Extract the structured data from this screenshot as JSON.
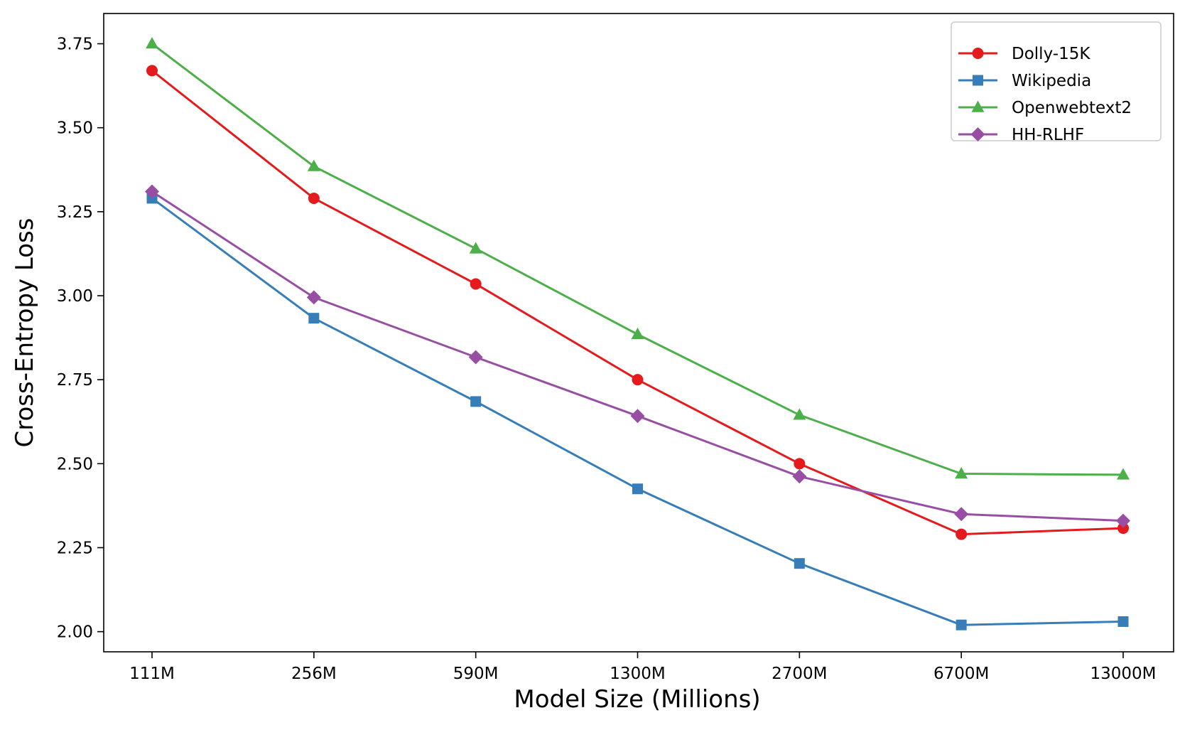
{
  "chart_data": {
    "type": "line",
    "title": "",
    "xlabel": "Model Size (Millions)",
    "ylabel": "Cross-Entropy Loss",
    "categories": [
      "111M",
      "256M",
      "590M",
      "1300M",
      "2700M",
      "6700M",
      "13000M"
    ],
    "ylim": [
      1.94,
      3.84
    ],
    "yticks": [
      2.0,
      2.25,
      2.5,
      2.75,
      3.0,
      3.25,
      3.5,
      3.75
    ],
    "ytick_labels": [
      "2.00",
      "2.25",
      "2.50",
      "2.75",
      "3.00",
      "3.25",
      "3.50",
      "3.75"
    ],
    "grid": false,
    "legend_position": "top-right",
    "series": [
      {
        "name": "Dolly-15K",
        "color": "#e41a1c",
        "marker": "circle",
        "values": [
          3.67,
          3.29,
          3.035,
          2.75,
          2.5,
          2.29,
          2.308
        ]
      },
      {
        "name": "Wikipedia",
        "color": "#377eb8",
        "marker": "square",
        "values": [
          3.29,
          2.933,
          2.685,
          2.425,
          2.203,
          2.02,
          2.03
        ]
      },
      {
        "name": "Openwebtext2",
        "color": "#4daf4a",
        "marker": "triangle",
        "values": [
          3.75,
          3.385,
          3.14,
          2.885,
          2.645,
          2.47,
          2.467
        ]
      },
      {
        "name": "HH-RLHF",
        "color": "#984ea3",
        "marker": "diamond",
        "values": [
          3.31,
          2.995,
          2.817,
          2.642,
          2.462,
          2.35,
          2.33
        ]
      }
    ]
  }
}
